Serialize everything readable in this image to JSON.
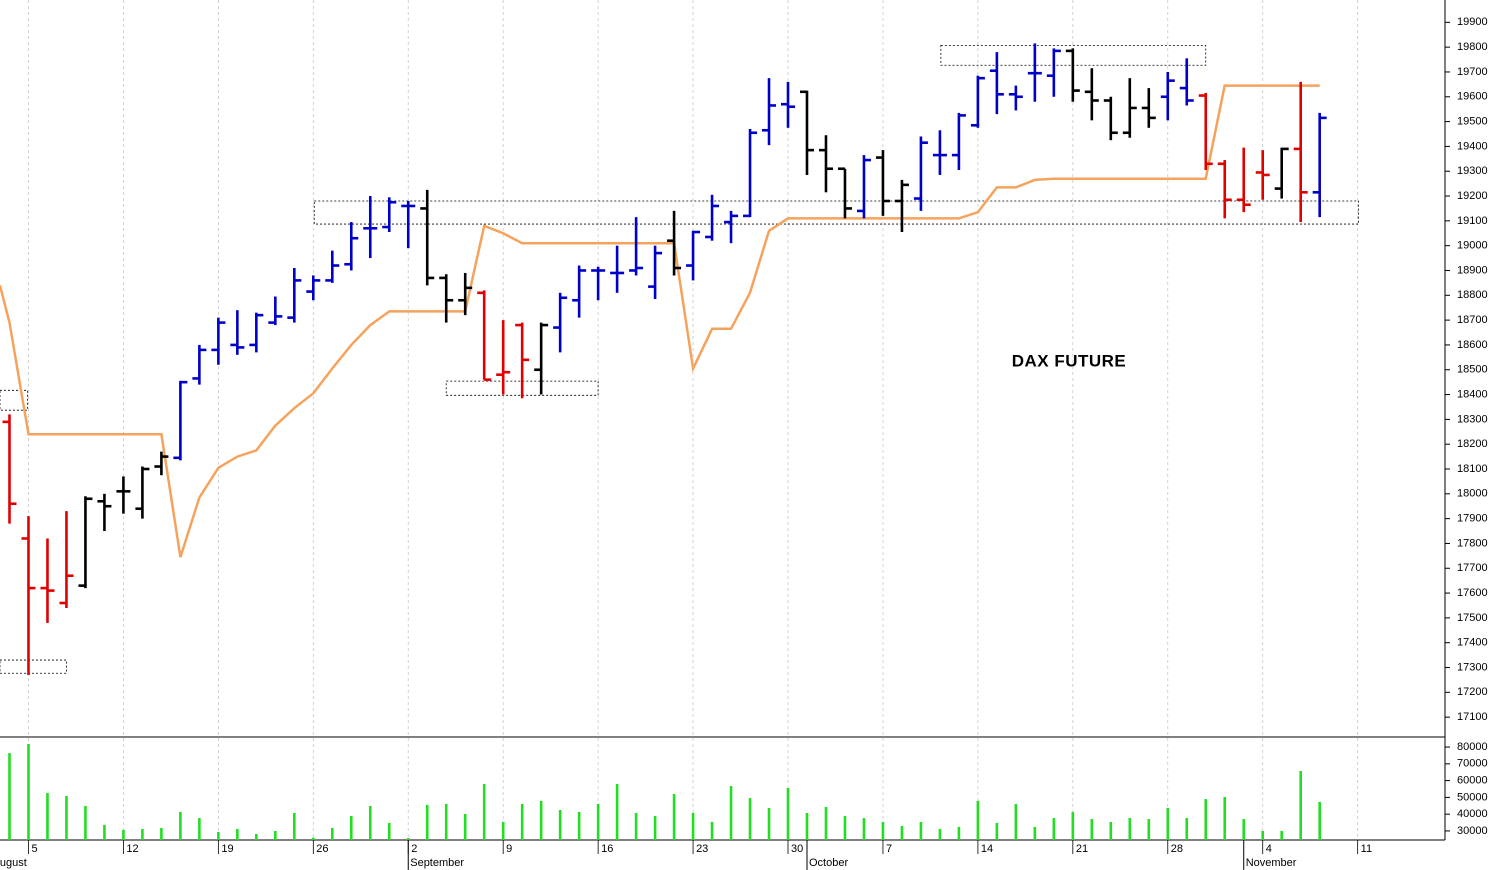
{
  "chart_data": [
    {
      "type": "ohlc",
      "annotation": "DAX FUTURE",
      "x": [
        0,
        1,
        2,
        3,
        4,
        5,
        6,
        7,
        8,
        9,
        10,
        11,
        12,
        13,
        14,
        15,
        16,
        17,
        18,
        19,
        20,
        21,
        22,
        23,
        24,
        25,
        26,
        27,
        28,
        29,
        30,
        31,
        32,
        33,
        34,
        35,
        36,
        37,
        38,
        39,
        40,
        41,
        42,
        43,
        44,
        45,
        46,
        47,
        48,
        49,
        50,
        51,
        52,
        53,
        54,
        55,
        56,
        57,
        58,
        59,
        60,
        61,
        62,
        63,
        64,
        65,
        66,
        67,
        68,
        69
      ],
      "open": [
        18290,
        17820,
        17620,
        17560,
        17630,
        17970,
        18010,
        17940,
        18110,
        18145,
        18465,
        18580,
        18600,
        18600,
        18690,
        18710,
        18815,
        18860,
        18925,
        19070,
        19075,
        19160,
        19150,
        18870,
        18780,
        18810,
        18480,
        18680,
        18500,
        18670,
        18780,
        18900,
        18890,
        18900,
        18835,
        19020,
        18920,
        19035,
        19095,
        19120,
        19465,
        19570,
        19620,
        19385,
        19310,
        19140,
        19355,
        19180,
        19190,
        19365,
        19365,
        19485,
        19705,
        19610,
        19695,
        19685,
        19785,
        19620,
        19585,
        19455,
        19555,
        19600,
        19635,
        19605,
        19330,
        19185,
        19295,
        19230,
        19390,
        19215
      ],
      "high": [
        18320,
        17910,
        17820,
        17930,
        17990,
        18000,
        18070,
        18110,
        18170,
        18455,
        18600,
        18710,
        18740,
        18730,
        18795,
        18910,
        18880,
        18980,
        19095,
        19200,
        19195,
        19180,
        19225,
        18885,
        18890,
        18820,
        18700,
        18690,
        18690,
        18810,
        18920,
        18915,
        19000,
        19115,
        19000,
        19140,
        19060,
        19205,
        19140,
        19470,
        19675,
        19660,
        19625,
        19445,
        19310,
        19365,
        19385,
        19265,
        19440,
        19465,
        19535,
        19685,
        19780,
        19645,
        19815,
        19795,
        19795,
        19715,
        19600,
        19675,
        19635,
        19700,
        19755,
        19615,
        19345,
        19395,
        19385,
        19395,
        19660,
        19535
      ],
      "low": [
        17880,
        17270,
        17480,
        17540,
        17620,
        17850,
        17920,
        17900,
        18075,
        18135,
        18440,
        18520,
        18560,
        18570,
        18680,
        18690,
        18780,
        18850,
        18900,
        18950,
        19055,
        18990,
        18840,
        18690,
        18720,
        18460,
        18400,
        18385,
        18400,
        18570,
        18710,
        18780,
        18810,
        18880,
        18785,
        18880,
        18860,
        19020,
        19010,
        19115,
        19405,
        19475,
        19285,
        19215,
        19110,
        19110,
        19120,
        19055,
        19140,
        19285,
        19305,
        19475,
        19530,
        19545,
        19580,
        19600,
        19580,
        19505,
        19425,
        19435,
        19475,
        19505,
        19565,
        19305,
        19110,
        19135,
        19185,
        19190,
        19095,
        19115
      ],
      "close": [
        17960,
        17620,
        17610,
        17670,
        17980,
        17950,
        18010,
        18100,
        18150,
        18450,
        18580,
        18690,
        18590,
        18720,
        18715,
        18860,
        18860,
        18920,
        19030,
        19070,
        19175,
        19160,
        18870,
        18780,
        18830,
        18460,
        18490,
        18540,
        18680,
        18790,
        18900,
        18900,
        18890,
        18910,
        18970,
        18910,
        19055,
        19160,
        19120,
        19455,
        19565,
        19560,
        19385,
        19310,
        19150,
        19345,
        19180,
        19245,
        19415,
        19365,
        19525,
        19675,
        19610,
        19600,
        19695,
        19785,
        19625,
        19585,
        19455,
        19555,
        19515,
        19665,
        19585,
        19330,
        19185,
        19165,
        19285,
        19390,
        19215,
        19515
      ],
      "colors": [
        "#e00000",
        "#e00000",
        "#e00000",
        "#e00000",
        "#000000",
        "#000000",
        "#000000",
        "#000000",
        "#000000",
        "#0000c8",
        "#0000c8",
        "#0000c8",
        "#0000c8",
        "#0000c8",
        "#0000c8",
        "#0000c8",
        "#0000c8",
        "#0000c8",
        "#0000c8",
        "#0000c8",
        "#0000c8",
        "#0000c8",
        "#000000",
        "#000000",
        "#000000",
        "#e00000",
        "#e00000",
        "#e00000",
        "#000000",
        "#0000c8",
        "#0000c8",
        "#0000c8",
        "#0000c8",
        "#0000c8",
        "#0000c8",
        "#000000",
        "#0000c8",
        "#0000c8",
        "#0000c8",
        "#0000c8",
        "#0000c8",
        "#0000c8",
        "#000000",
        "#000000",
        "#000000",
        "#0000c8",
        "#000000",
        "#000000",
        "#0000c8",
        "#0000c8",
        "#0000c8",
        "#0000c8",
        "#0000c8",
        "#0000c8",
        "#0000c8",
        "#0000c8",
        "#000000",
        "#000000",
        "#000000",
        "#000000",
        "#000000",
        "#0000c8",
        "#0000c8",
        "#e00000",
        "#e00000",
        "#e00000",
        "#e00000",
        "#000000",
        "#e00000",
        "#0000c8"
      ],
      "line": {
        "color": "#f5a35c",
        "x": [
          -0.5,
          0,
          1,
          2,
          3,
          4,
          5,
          6,
          7,
          8,
          9,
          10,
          11,
          12,
          13,
          14,
          15,
          16,
          17,
          18,
          19,
          20,
          21,
          22,
          23,
          24,
          25,
          26,
          27,
          28,
          29,
          30,
          31,
          32,
          33,
          34,
          35,
          36,
          37,
          38,
          39,
          40,
          41,
          42,
          43,
          44,
          45,
          46,
          47,
          48,
          49,
          50,
          51,
          52,
          53,
          54,
          55,
          56,
          57,
          58,
          59,
          60,
          61,
          62,
          63,
          64,
          65,
          66,
          67,
          68,
          69
        ],
        "values": [
          18840,
          18690,
          18240,
          18240,
          18240,
          18240,
          18240,
          18240,
          18240,
          18240,
          17745,
          17985,
          18105,
          18150,
          18175,
          18275,
          18345,
          18405,
          18505,
          18600,
          18680,
          18735,
          18735,
          18735,
          18735,
          18735,
          19080,
          19050,
          19010,
          19010,
          19010,
          19010,
          19010,
          19010,
          19010,
          19010,
          19010,
          18505,
          18665,
          18665,
          18810,
          19060,
          19110,
          19110,
          19110,
          19110,
          19110,
          19110,
          19110,
          19110,
          19110,
          19110,
          19135,
          19235,
          19235,
          19265,
          19270,
          19270,
          19270,
          19270,
          19270,
          19270,
          19270,
          19270,
          19270,
          19645,
          19645,
          19645,
          19645,
          19645,
          19645
        ]
      },
      "zones": [
        {
          "x": [
            -0.5,
            0.95
          ],
          "y": [
            18337,
            18417
          ]
        },
        {
          "x": [
            -0.5,
            3
          ],
          "y": [
            17277,
            17330
          ]
        },
        {
          "x": [
            16.05,
            71.05
          ],
          "y": [
            19087,
            19180
          ]
        },
        {
          "x": [
            23,
            31
          ],
          "y": [
            18397,
            18454
          ]
        },
        {
          "x": [
            49.05,
            63
          ],
          "y": [
            19727,
            19807
          ]
        }
      ],
      "xlim": [
        -0.5,
        75.6
      ],
      "ylim": [
        17020,
        19990
      ],
      "yticks": [
        17100,
        17200,
        17300,
        17400,
        17500,
        17600,
        17700,
        17800,
        17900,
        18000,
        18100,
        18200,
        18300,
        18400,
        18500,
        18600,
        18700,
        18800,
        18900,
        19000,
        19100,
        19200,
        19300,
        19400,
        19500,
        19600,
        19700,
        19800,
        19900
      ]
    },
    {
      "type": "bar",
      "x": [
        0,
        1,
        2,
        3,
        4,
        5,
        6,
        7,
        8,
        9,
        10,
        11,
        12,
        13,
        14,
        15,
        16,
        17,
        18,
        19,
        20,
        21,
        22,
        23,
        24,
        25,
        26,
        27,
        28,
        29,
        30,
        31,
        32,
        33,
        34,
        35,
        36,
        37,
        38,
        39,
        40,
        41,
        42,
        43,
        44,
        45,
        46,
        47,
        48,
        49,
        50,
        51,
        52,
        53,
        54,
        55,
        56,
        57,
        58,
        59,
        60,
        61,
        62,
        63,
        64,
        65,
        66,
        67,
        68,
        69
      ],
      "values": [
        76400,
        81800,
        52600,
        50800,
        44900,
        33600,
        30600,
        31200,
        31800,
        41300,
        37700,
        29400,
        31200,
        28200,
        30000,
        40700,
        26000,
        31800,
        38900,
        44900,
        34800,
        25800,
        45500,
        46100,
        40100,
        58000,
        35400,
        46100,
        47900,
        42500,
        41300,
        46100,
        58000,
        40700,
        38900,
        52000,
        40700,
        35400,
        56800,
        49600,
        43700,
        55600,
        40700,
        44300,
        38900,
        37700,
        35400,
        33000,
        35400,
        31200,
        32400,
        47900,
        34800,
        46100,
        32400,
        37700,
        41300,
        37100,
        35400,
        37700,
        37100,
        43700,
        37700,
        49000,
        50200,
        37100,
        30000,
        30000,
        65700,
        47300
      ],
      "color": "#22dd22",
      "xlim": [
        -0.5,
        75.6
      ],
      "ylim": [
        24600,
        86000
      ],
      "yticks": [
        30000,
        40000,
        50000,
        60000,
        70000,
        80000
      ],
      "xticks": [
        {
          "value": 1,
          "label": "5"
        },
        {
          "value": 6,
          "label": "12"
        },
        {
          "value": 11,
          "label": "19"
        },
        {
          "value": 16,
          "label": "26"
        },
        {
          "value": 21,
          "label": "2"
        },
        {
          "value": 26,
          "label": "9"
        },
        {
          "value": 31,
          "label": "16"
        },
        {
          "value": 36,
          "label": "23"
        },
        {
          "value": 41,
          "label": "30"
        },
        {
          "value": 46,
          "label": "7"
        },
        {
          "value": 51,
          "label": "14"
        },
        {
          "value": 56,
          "label": "21"
        },
        {
          "value": 61,
          "label": "28"
        },
        {
          "value": 66,
          "label": "4"
        },
        {
          "value": 71,
          "label": "11"
        }
      ],
      "month_ticks": [
        {
          "value": -1,
          "label": "August"
        },
        {
          "value": 21,
          "label": "September"
        },
        {
          "value": 42,
          "label": "October"
        },
        {
          "value": 65,
          "label": "November"
        }
      ]
    }
  ]
}
